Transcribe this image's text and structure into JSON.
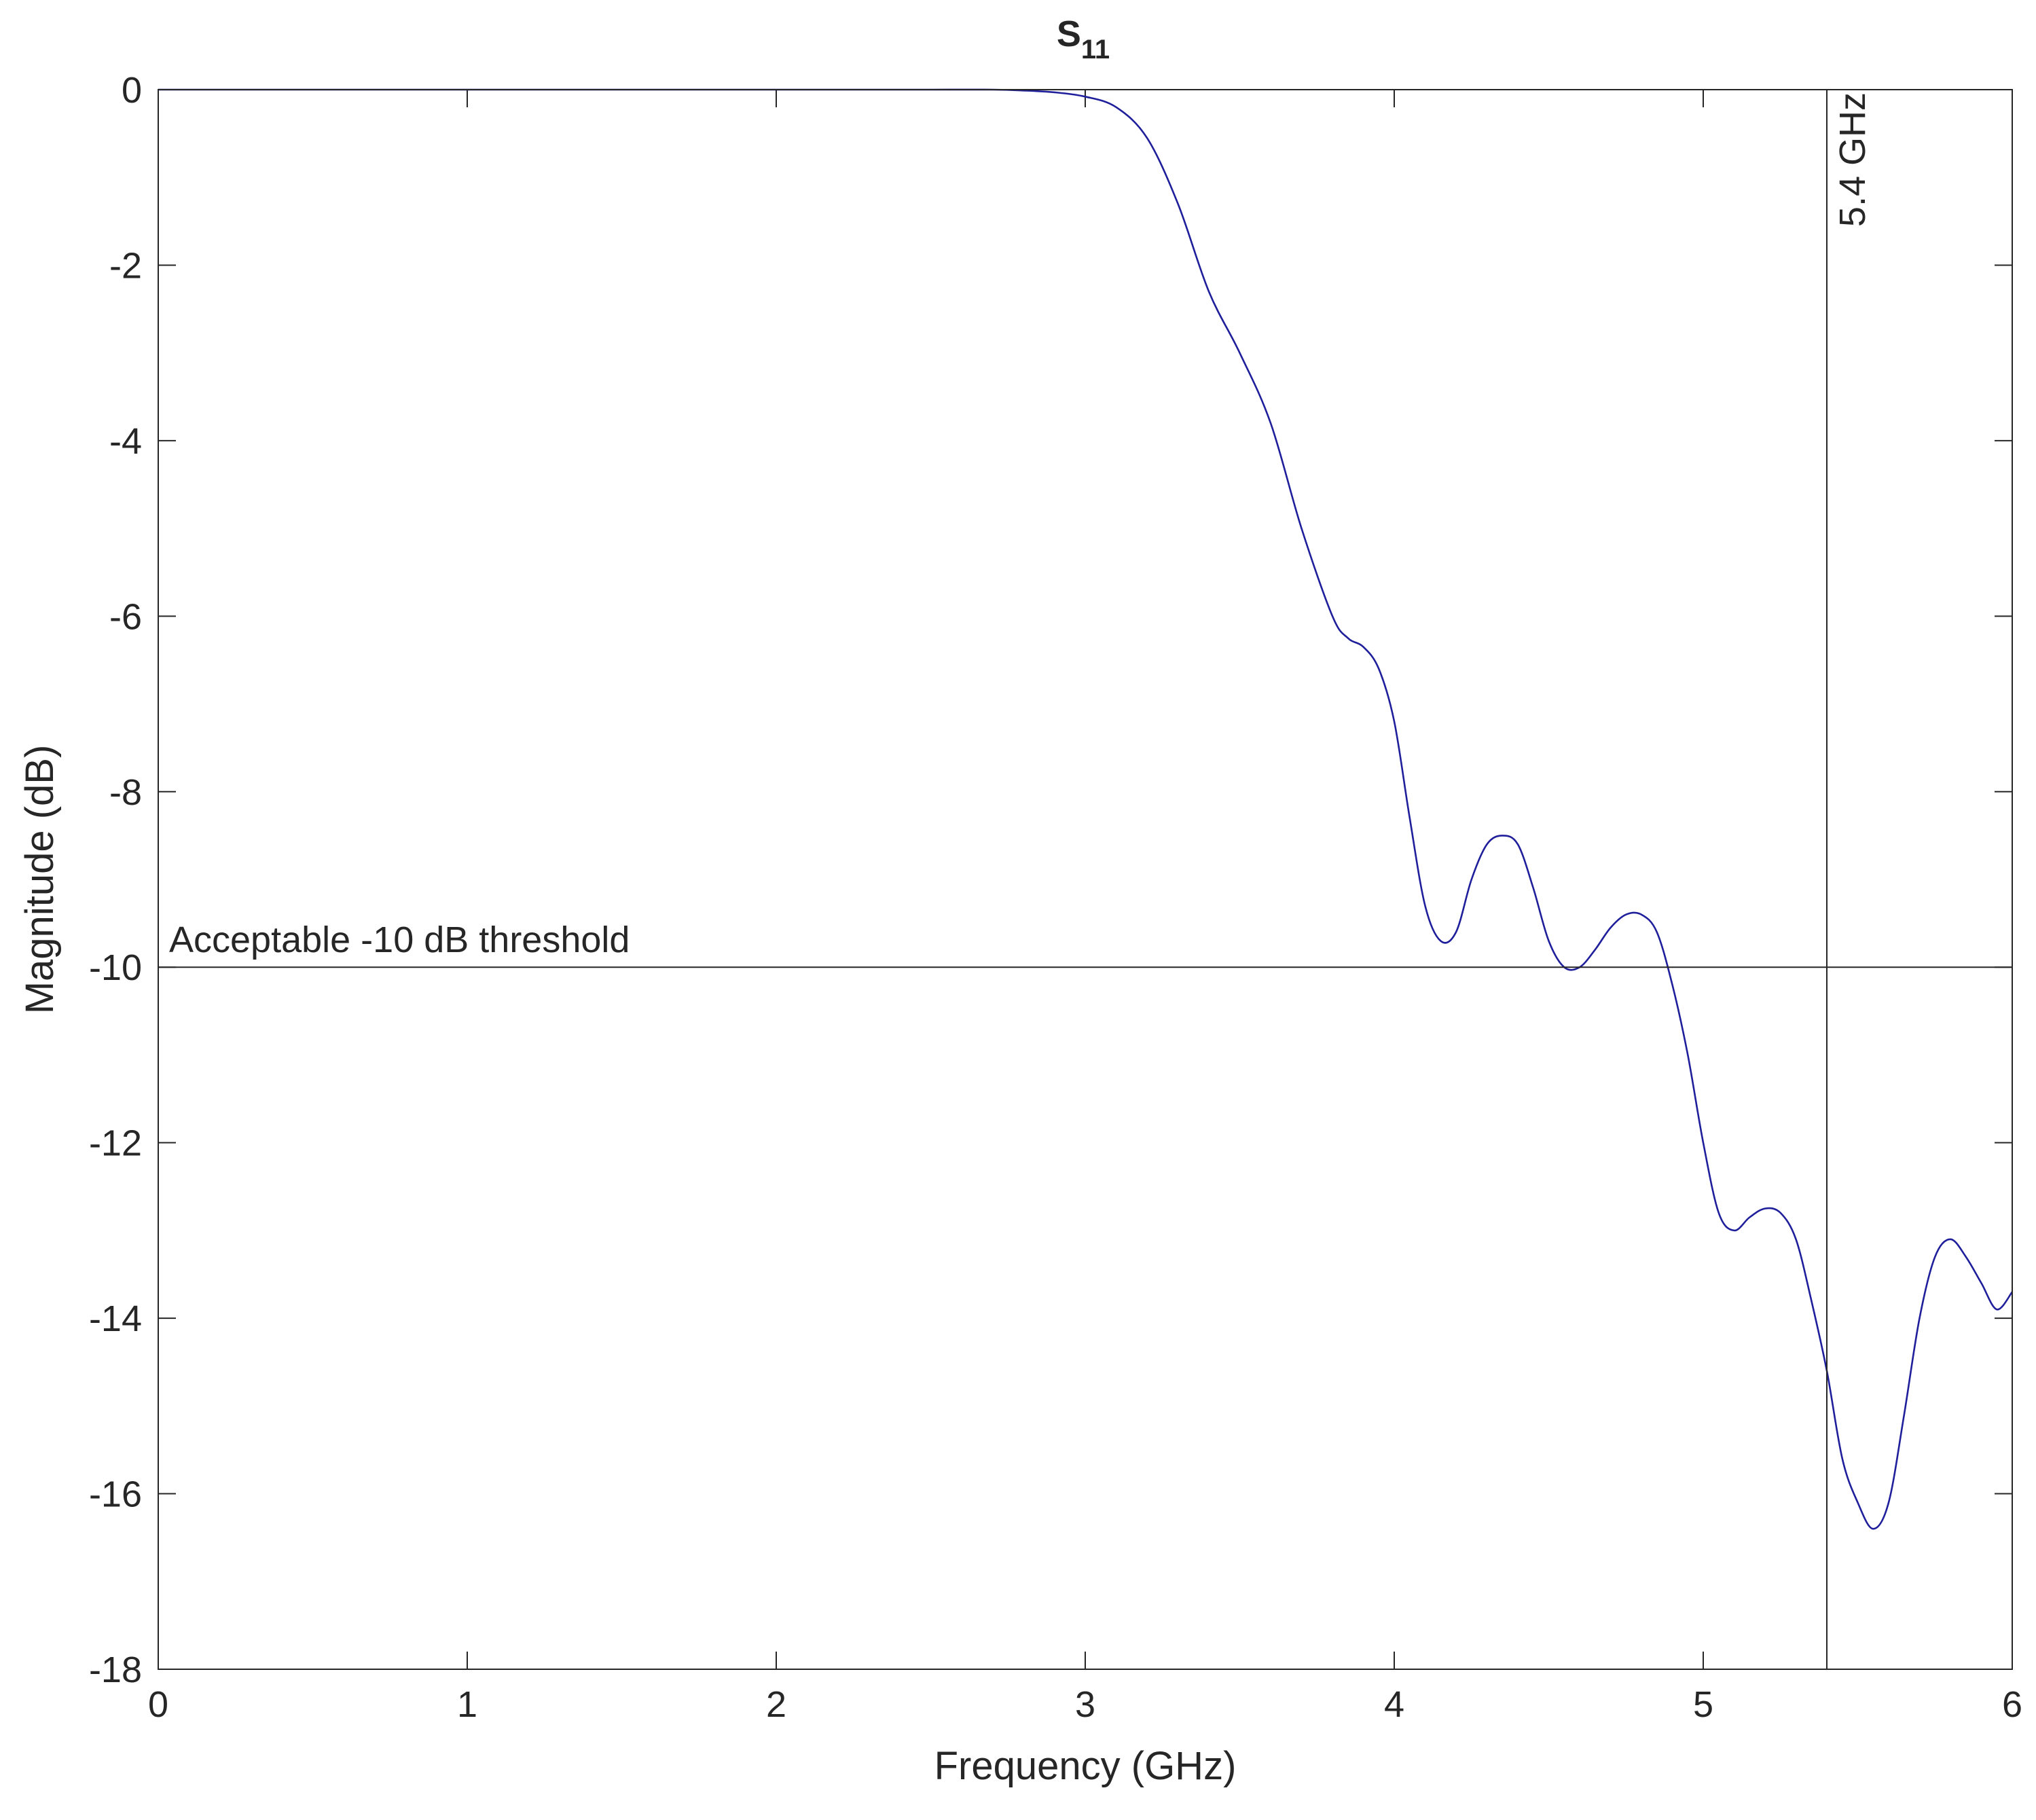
{
  "chart_data": {
    "type": "line",
    "title": "S",
    "title_subscript": "11",
    "xlabel": "Frequency (GHz)",
    "ylabel": "Magnitude (dB)",
    "xlim": [
      0,
      6
    ],
    "ylim": [
      -18,
      0
    ],
    "xticks": [
      0,
      1,
      2,
      3,
      4,
      5,
      6
    ],
    "yticks": [
      0,
      -2,
      -4,
      -6,
      -8,
      -10,
      -12,
      -14,
      -16,
      -18
    ],
    "grid": false,
    "legend": false,
    "line_color": "#1f1f9c",
    "threshold": {
      "y": -10,
      "label": "Acceptable -10 dB threshold",
      "color": "#262626"
    },
    "marker": {
      "x": 5.4,
      "label": "5.4 GHz",
      "color": "#262626"
    },
    "series": [
      {
        "x": [
          0,
          0.5,
          1,
          1.5,
          2,
          2.5,
          2.7,
          2.8,
          2.9,
          3.0,
          3.1,
          3.2,
          3.3,
          3.4,
          3.5,
          3.6,
          3.7,
          3.8,
          3.85,
          3.9,
          3.95,
          4.0,
          4.05,
          4.1,
          4.15,
          4.2,
          4.25,
          4.3,
          4.35,
          4.4,
          4.45,
          4.5,
          4.55,
          4.6,
          4.65,
          4.7,
          4.75,
          4.8,
          4.85,
          4.9,
          4.95,
          5.0,
          5.05,
          5.1,
          5.15,
          5.2,
          5.25,
          5.3,
          5.35,
          5.4,
          5.45,
          5.5,
          5.55,
          5.6,
          5.65,
          5.7,
          5.75,
          5.8,
          5.85,
          5.9,
          5.95,
          6.0
        ],
        "y": [
          0,
          0,
          0,
          0,
          0,
          0,
          0,
          -0.01,
          -0.03,
          -0.08,
          -0.2,
          -0.55,
          -1.3,
          -2.3,
          -3.0,
          -3.8,
          -5.0,
          -6.0,
          -6.25,
          -6.35,
          -6.6,
          -7.2,
          -8.3,
          -9.3,
          -9.7,
          -9.6,
          -9.0,
          -8.6,
          -8.5,
          -8.6,
          -9.1,
          -9.7,
          -10.0,
          -10.0,
          -9.8,
          -9.55,
          -9.4,
          -9.4,
          -9.6,
          -10.2,
          -11.0,
          -12.0,
          -12.8,
          -13.0,
          -12.85,
          -12.75,
          -12.8,
          -13.1,
          -13.8,
          -14.6,
          -15.6,
          -16.1,
          -16.4,
          -16.1,
          -15.1,
          -14.0,
          -13.3,
          -13.1,
          -13.3,
          -13.6,
          -13.9,
          -13.7
        ]
      }
    ]
  }
}
